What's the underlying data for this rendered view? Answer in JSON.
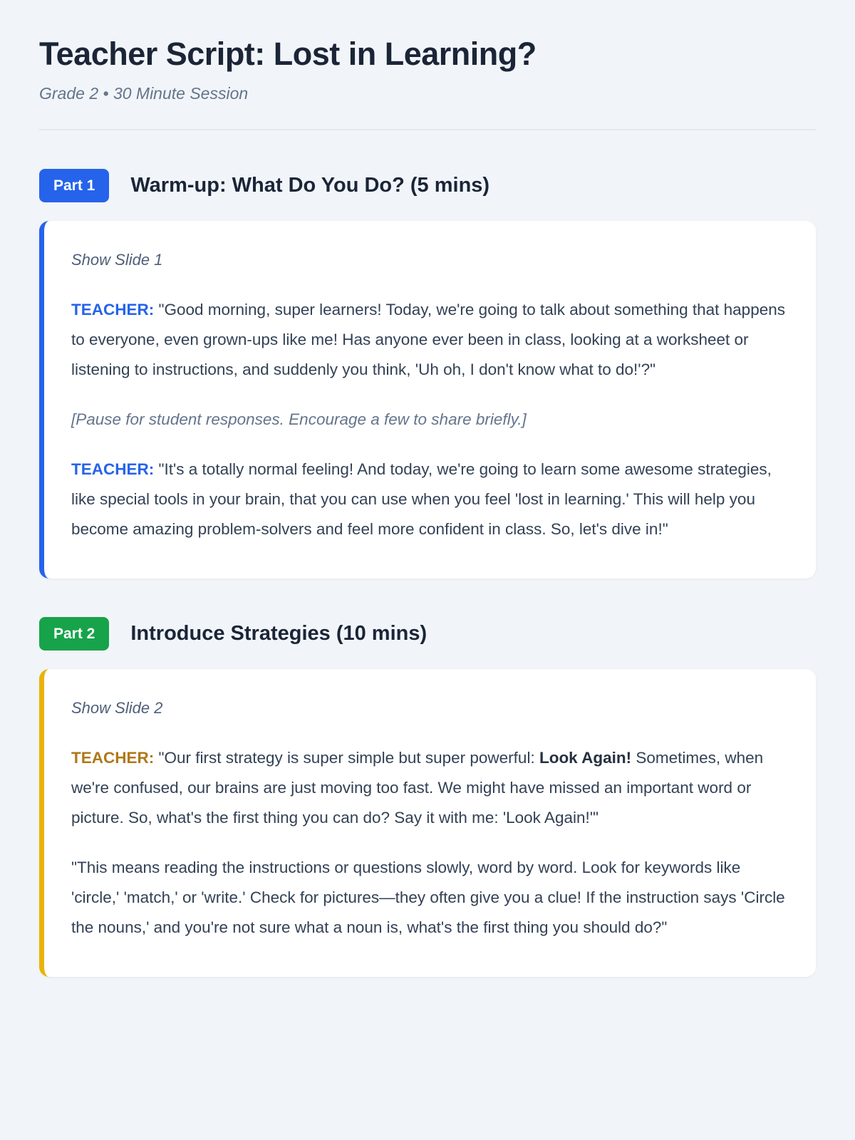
{
  "page": {
    "title": "Teacher Script: Lost in Learning?",
    "subtitle": "Grade 2 • 30 Minute Session"
  },
  "colors": {
    "part1_accent": "#2563eb",
    "part2_badge": "#17a34a",
    "part2_accent": "#eab308",
    "part2_teacher_label": "#b07818",
    "body_text": "#334155",
    "title_text": "#1b2537",
    "page_background": "#f1f5f9"
  },
  "part1": {
    "badge_label": "Part 1",
    "heading": "Warm-up: What Do You Do? (5 mins)",
    "slide_note": "Show Slide 1",
    "teacher_label": "TEACHER:",
    "para1_text": " \"Good morning, super learners! Today, we're going to talk about something that happens to everyone, even grown-ups like me! Has anyone ever been in class, looking at a worksheet or listening to instructions, and suddenly you think, 'Uh oh, I don't know what to do!'?\"",
    "pause_note": "[Pause for student responses. Encourage a few to share briefly.]",
    "para2_text": " \"It's a totally normal feeling! And today, we're going to learn some awesome strategies, like special tools in your brain, that you can use when you feel 'lost in learning.' This will help you become amazing problem-solvers and feel more confident in class. So, let's dive in!\""
  },
  "part2": {
    "badge_label": "Part 2",
    "heading": "Introduce Strategies (10 mins)",
    "slide_note": "Show Slide 2",
    "teacher_label": "TEACHER:",
    "para1_before_bold": " \"Our first strategy is super simple but super powerful: ",
    "para1_bold": "Look Again!",
    "para1_after_bold": " Sometimes, when we're confused, our brains are just moving too fast. We might have missed an important word or picture. So, what's the first thing you can do? Say it with me: 'Look Again!'\"",
    "para2_text": "\"This means reading the instructions or questions slowly, word by word. Look for keywords like 'circle,' 'match,' or 'write.' Check for pictures—they often give you a clue! If the instruction says 'Circle the nouns,' and you're not sure what a noun is, what's the first thing you should do?\""
  }
}
